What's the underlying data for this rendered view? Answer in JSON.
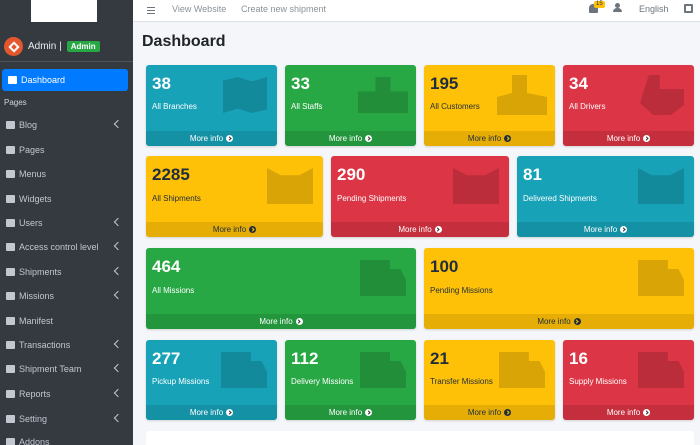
{
  "sidebar": {
    "user": {
      "name": "Admin |",
      "badge": "Admin"
    },
    "active_item": "Dashboard",
    "section_header": "Pages",
    "items": [
      {
        "label": "Blog",
        "icon": "blog-icon",
        "has_submenu": true
      },
      {
        "label": "Pages",
        "icon": "pages-icon",
        "has_submenu": false
      },
      {
        "label": "Menus",
        "icon": "menus-icon",
        "has_submenu": false
      },
      {
        "label": "Widgets",
        "icon": "widgets-icon",
        "has_submenu": false
      },
      {
        "label": "Users",
        "icon": "users-icon",
        "has_submenu": true
      },
      {
        "label": "Access control level",
        "icon": "access-control-icon",
        "has_submenu": true
      },
      {
        "label": "Shipments",
        "icon": "shipments-icon",
        "has_submenu": true
      },
      {
        "label": "Missions",
        "icon": "missions-icon",
        "has_submenu": true
      },
      {
        "label": "Manifest",
        "icon": "manifest-icon",
        "has_submenu": false
      },
      {
        "label": "Transactions",
        "icon": "transactions-icon",
        "has_submenu": true
      },
      {
        "label": "Shipment Team",
        "icon": "shipment-team-icon",
        "has_submenu": true
      },
      {
        "label": "Reports",
        "icon": "reports-icon",
        "has_submenu": true
      },
      {
        "label": "Setting",
        "icon": "setting-icon",
        "has_submenu": true
      },
      {
        "label": "Addons",
        "icon": "addons-icon",
        "has_submenu": false
      }
    ]
  },
  "topbar": {
    "view_website": "View Website",
    "create_shipment": "Create new shipment",
    "notification_count": "15",
    "language": "English"
  },
  "page_title": "Dashboard",
  "more_info": "More info",
  "colors": {
    "teal": "#17a2b8",
    "green": "#28a745",
    "yellow": "#ffc107",
    "red": "#dc3545",
    "sidebar": "#343a40",
    "active": "#007bff"
  },
  "stats": [
    {
      "value": "38",
      "label": "All Branches",
      "color": "teal",
      "icon": "map-icon"
    },
    {
      "value": "33",
      "label": "All Staffs",
      "color": "green",
      "icon": "staff-group-icon"
    },
    {
      "value": "195",
      "label": "All Customers",
      "color": "yellow",
      "icon": "customers-icon"
    },
    {
      "value": "34",
      "label": "All Drivers",
      "color": "red",
      "icon": "driver-carrying-box-icon"
    },
    {
      "value": "2285",
      "label": "All Shipments",
      "color": "yellow",
      "icon": "open-box-icon"
    },
    {
      "value": "290",
      "label": "Pending Shipments",
      "color": "red",
      "icon": "open-box-icon"
    },
    {
      "value": "81",
      "label": "Delivered Shipments",
      "color": "teal",
      "icon": "open-box-icon"
    },
    {
      "value": "464",
      "label": "All Missions",
      "color": "green",
      "icon": "truck-icon"
    },
    {
      "value": "100",
      "label": "Pending Missions",
      "color": "yellow",
      "icon": "truck-icon"
    },
    {
      "value": "277",
      "label": "Pickup Missions",
      "color": "teal",
      "icon": "truck-icon"
    },
    {
      "value": "112",
      "label": "Delivery Missions",
      "color": "green",
      "icon": "truck-icon"
    },
    {
      "value": "21",
      "label": "Transfer Missions",
      "color": "yellow",
      "icon": "truck-icon"
    },
    {
      "value": "16",
      "label": "Supply Missions",
      "color": "red",
      "icon": "truck-icon"
    }
  ]
}
